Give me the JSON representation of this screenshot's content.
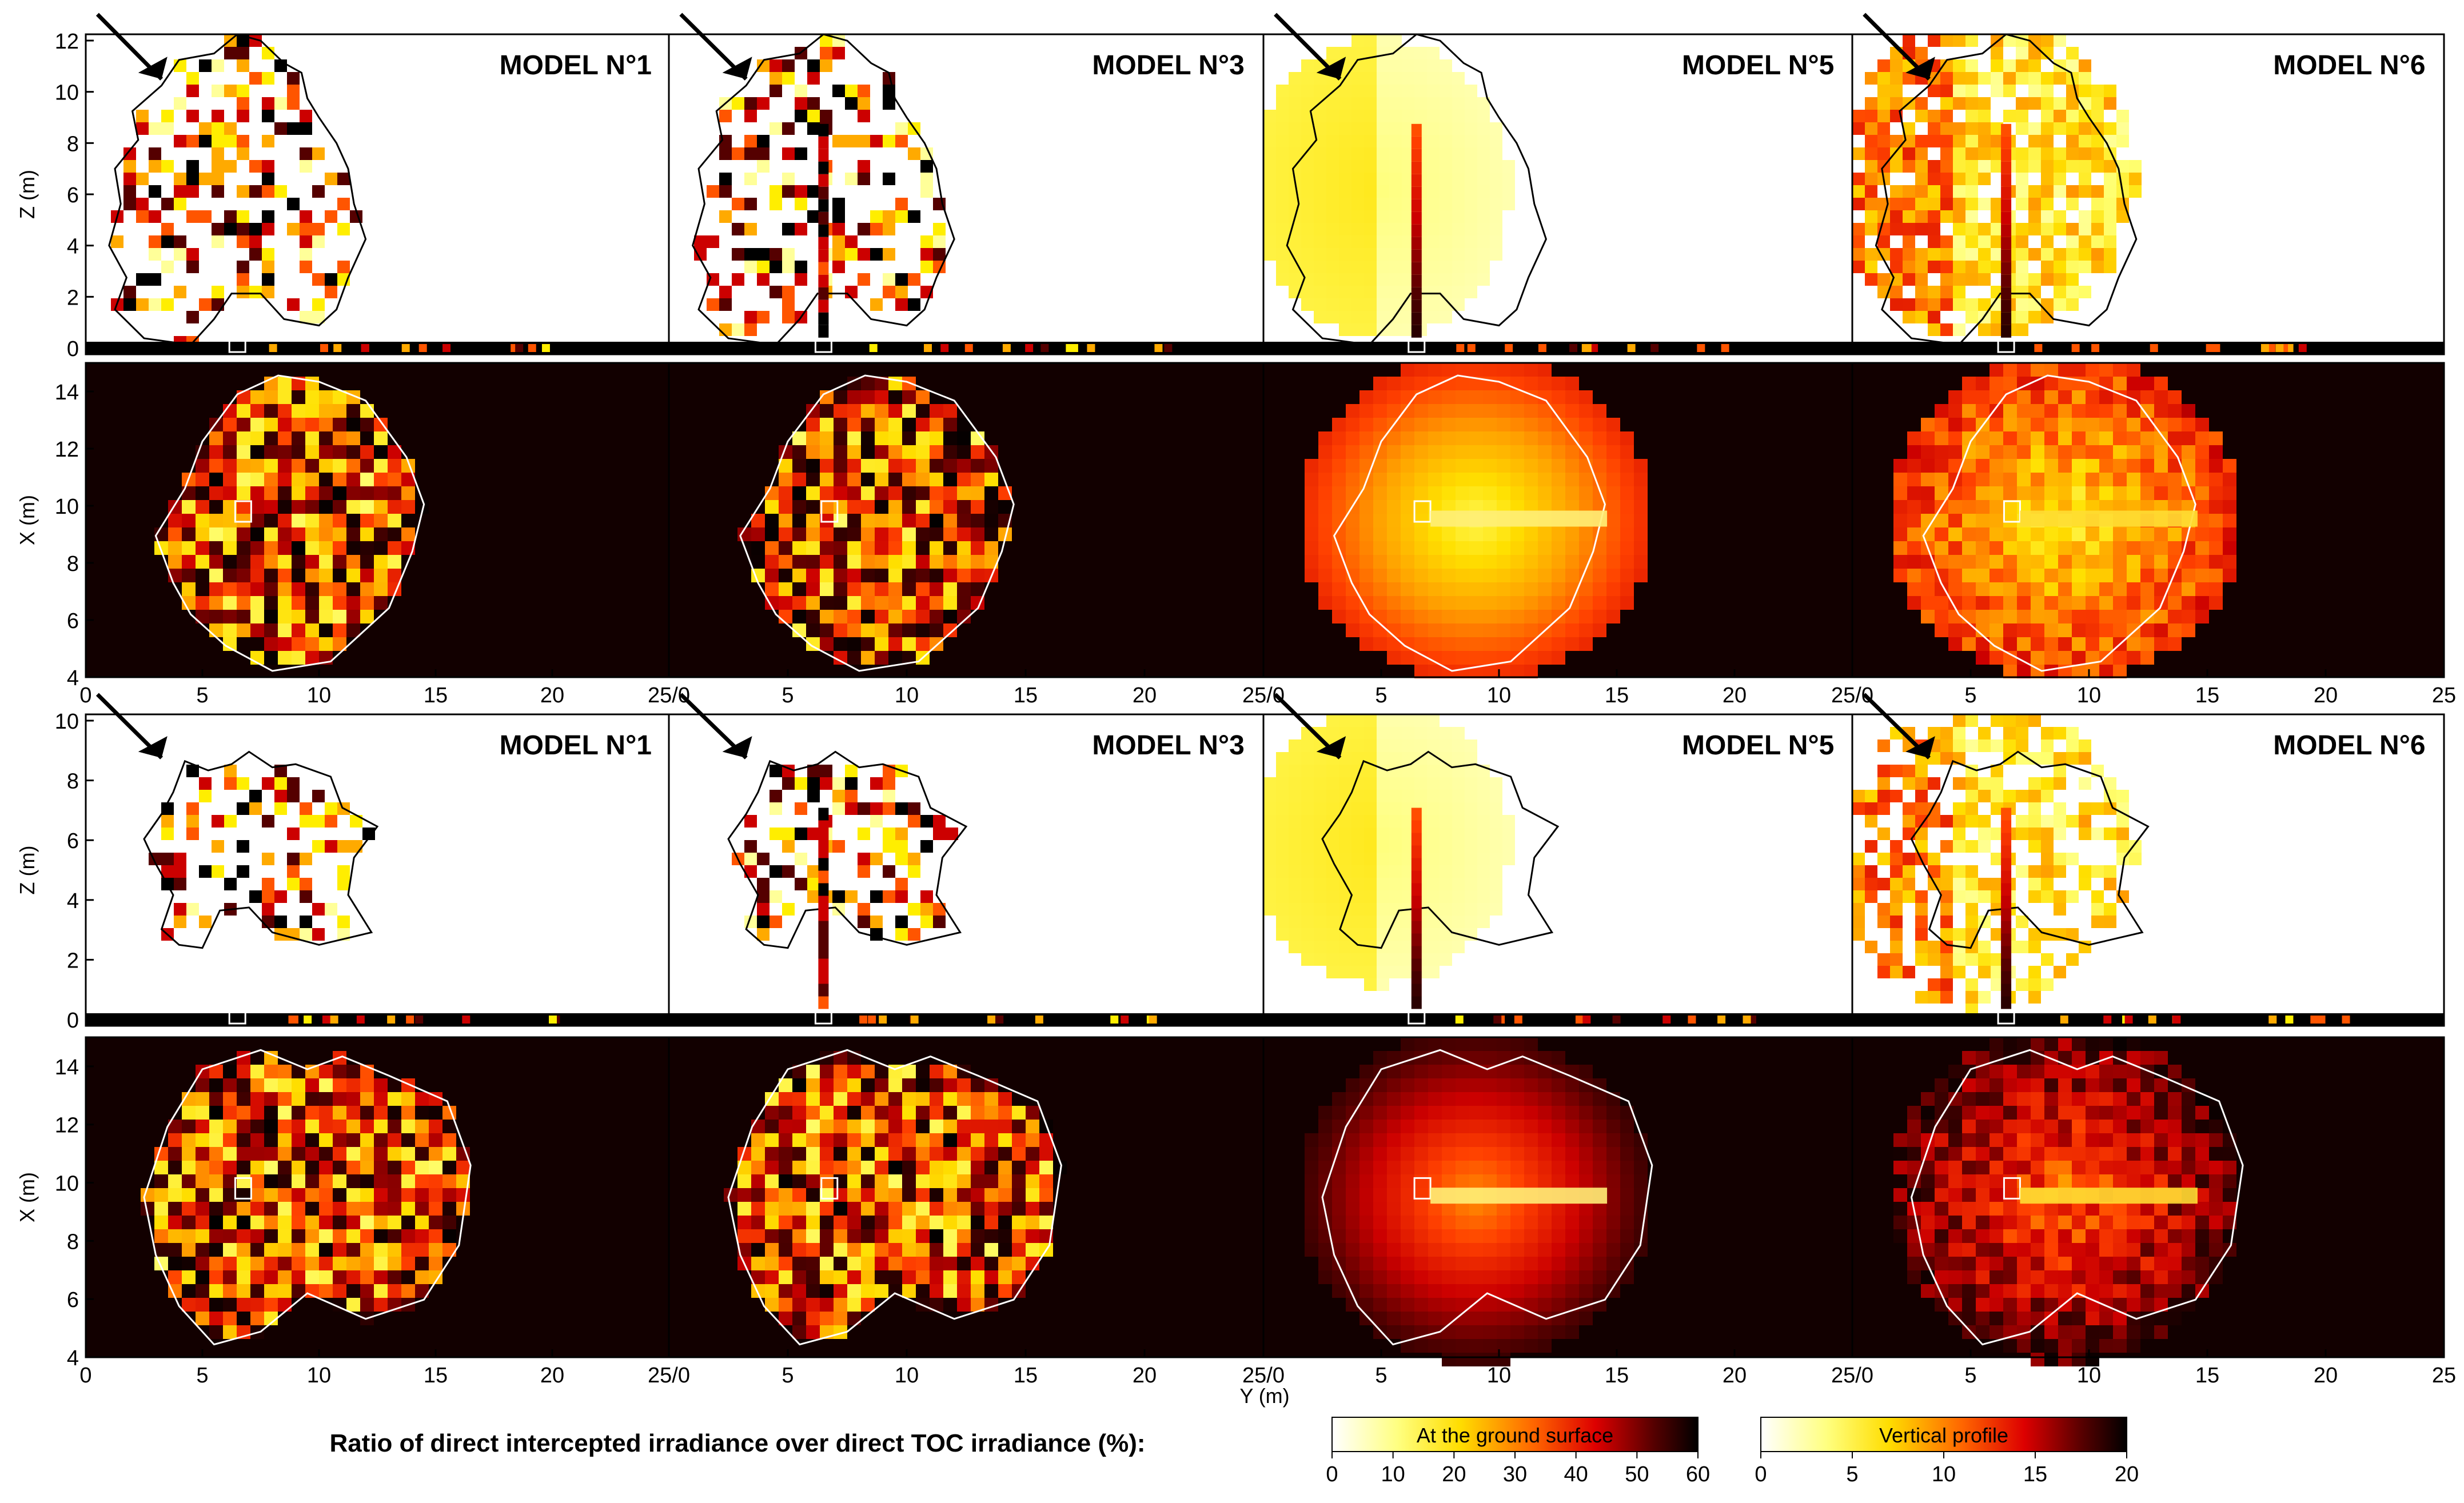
{
  "chart_data": {
    "type": "heatmap",
    "title": "Ratio of direct intercepted irradiance over direct TOC irradiance (%):",
    "xlabel": "Y (m)",
    "models": [
      "MODEL N°1",
      "MODEL N°3",
      "MODEL N°5",
      "MODEL N°6"
    ],
    "y_axis": {
      "xticks": [
        "0",
        "5",
        "10",
        "15",
        "20",
        "25"
      ],
      "xlim": [
        0,
        25
      ]
    },
    "trees": [
      {
        "name": "upper tree",
        "side_view": {
          "ylabel": "Z (m)",
          "yticks": [
            "0",
            "2",
            "4",
            "6",
            "8",
            "10",
            "12"
          ],
          "ylim": [
            0,
            12
          ]
        },
        "top_view": {
          "ylabel": "X (m)",
          "yticks": [
            "4",
            "6",
            "8",
            "10",
            "12",
            "14"
          ],
          "ylim": [
            4,
            15
          ]
        }
      },
      {
        "name": "lower tree",
        "side_view": {
          "ylabel": "Z (m)",
          "yticks": [
            "0",
            "2",
            "4",
            "6",
            "8",
            "10"
          ],
          "ylim": [
            0,
            10
          ]
        },
        "top_view": {
          "ylabel": "X (m)",
          "yticks": [
            "4",
            "6",
            "8",
            "10",
            "12",
            "14"
          ],
          "ylim": [
            4,
            15
          ]
        }
      }
    ],
    "colorbars": [
      {
        "label": "At the ground surface",
        "ticks": [
          "0",
          "10",
          "20",
          "30",
          "40",
          "50",
          "60"
        ],
        "range": [
          0,
          60
        ]
      },
      {
        "label": "Vertical profile",
        "ticks": [
          "0",
          "5",
          "10",
          "15",
          "20"
        ],
        "range": [
          0,
          20
        ]
      }
    ],
    "colormap": [
      "#ffffff",
      "#ffff99",
      "#ffee00",
      "#ffaa00",
      "#ff5500",
      "#cc0000",
      "#550000",
      "#000000"
    ]
  }
}
